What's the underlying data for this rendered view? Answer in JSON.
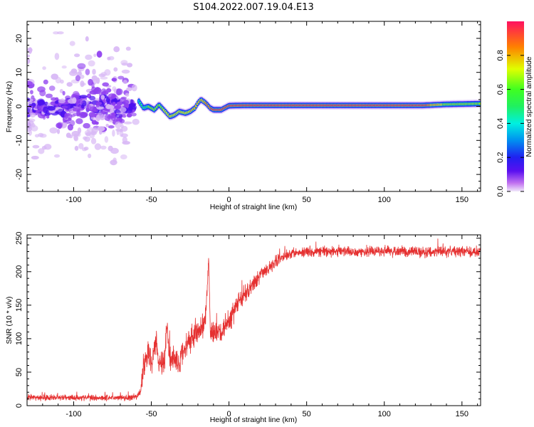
{
  "figure": {
    "title": "S104.2022.007.19.04.E13"
  },
  "colors": {
    "snr_line": "#e53030",
    "spectrum_center": "#e0204a",
    "spectrum_halo": "#8a3cf0",
    "colormap": [
      "#f0e8fa",
      "#c070f0",
      "#4010f0",
      "#00a0f0",
      "#00f0d0",
      "#30ff30",
      "#e0ff00",
      "#ff9000",
      "#ff2050"
    ]
  },
  "chart_data": [
    {
      "type": "heatmap",
      "title": "S104.2022.007.19.04.E13",
      "xlabel": "Height of straight line (km)",
      "ylabel": "Frequency (Hz)",
      "xlim": [
        -130,
        162
      ],
      "ylim": [
        -25,
        25
      ],
      "x_ticks": [
        -100,
        -50,
        0,
        50,
        100,
        150
      ],
      "x_tick_labels": [
        "-100",
        "-50",
        "0",
        "50",
        "100",
        "150"
      ],
      "y_ticks": [
        -20,
        -10,
        0,
        10,
        20
      ],
      "y_tick_labels": [
        "-20",
        "-10",
        "0",
        "10",
        "20"
      ],
      "colorbar": {
        "label": "Normalized spectral amplitude",
        "range": [
          0,
          1
        ],
        "ticks": [
          0.0,
          0.2,
          0.4,
          0.6,
          0.8
        ],
        "tick_labels": [
          "0.0",
          "0.2",
          "0.4",
          "0.6",
          "0.8"
        ]
      },
      "ridge": {
        "x": [
          -58,
          -55,
          -52,
          -48,
          -45,
          -42,
          -38,
          -35,
          -32,
          -28,
          -25,
          -22,
          -20,
          -18,
          -15,
          -12,
          -10,
          -5,
          0,
          10,
          30,
          50,
          80,
          100,
          125,
          140,
          162
        ],
        "frequency": [
          1.5,
          -0.5,
          0,
          -1,
          0.5,
          -1,
          -3,
          -2.5,
          -1.5,
          -2,
          -1.5,
          -0.5,
          1,
          2,
          1,
          -0.5,
          -1,
          -1,
          0.2,
          0.3,
          0.3,
          0.3,
          0.3,
          0.3,
          0.3,
          0.6,
          0.8
        ],
        "amplitude": [
          0.45,
          0.5,
          0.55,
          0.6,
          0.6,
          0.65,
          0.7,
          0.7,
          0.7,
          0.7,
          0.7,
          0.75,
          0.75,
          0.75,
          0.8,
          0.85,
          0.9,
          0.9,
          0.95,
          0.95,
          0.95,
          0.95,
          0.95,
          0.95,
          0.9,
          0.6,
          0.55
        ]
      },
      "noise_region": {
        "x_range": [
          -130,
          -60
        ],
        "frequency_range": [
          -25,
          25
        ],
        "amplitude_range": [
          0.05,
          0.3
        ]
      }
    },
    {
      "type": "line",
      "xlabel": "Height of straight line (km)",
      "ylabel": "SNR (10 * v/v)",
      "xlim": [
        -130,
        162
      ],
      "ylim": [
        0,
        255
      ],
      "x_ticks": [
        -100,
        -50,
        0,
        50,
        100,
        150
      ],
      "x_tick_labels": [
        "-100",
        "-50",
        "0",
        "50",
        "100",
        "150"
      ],
      "y_ticks": [
        0,
        50,
        100,
        150,
        200,
        250
      ],
      "y_tick_labels": [
        "0",
        "50",
        "100",
        "150",
        "200",
        "250"
      ],
      "series": [
        {
          "x": [
            -130,
            -100,
            -70,
            -60,
            -57,
            -55,
            -52,
            -50,
            -47,
            -45,
            -42,
            -40,
            -38,
            -35,
            -32,
            -30,
            -27,
            -25,
            -22,
            -20,
            -18,
            -15,
            -13,
            -12,
            -10,
            -5,
            0,
            5,
            10,
            15,
            20,
            25,
            30,
            40,
            50,
            75,
            100,
            125,
            162
          ],
          "y": [
            12,
            12,
            12,
            12,
            20,
            60,
            80,
            60,
            100,
            70,
            60,
            120,
            75,
            70,
            60,
            80,
            90,
            100,
            105,
            110,
            115,
            130,
            220,
            110,
            110,
            110,
            125,
            150,
            165,
            180,
            195,
            205,
            215,
            228,
            230,
            230,
            230,
            230,
            230
          ],
          "noise_amplitude": [
            6,
            6,
            6,
            6,
            10,
            25,
            25,
            25,
            25,
            30,
            30,
            30,
            30,
            25,
            25,
            25,
            25,
            25,
            25,
            25,
            25,
            25,
            10,
            25,
            20,
            20,
            20,
            18,
            18,
            15,
            15,
            12,
            12,
            10,
            10,
            10,
            10,
            10,
            10
          ]
        }
      ]
    }
  ]
}
